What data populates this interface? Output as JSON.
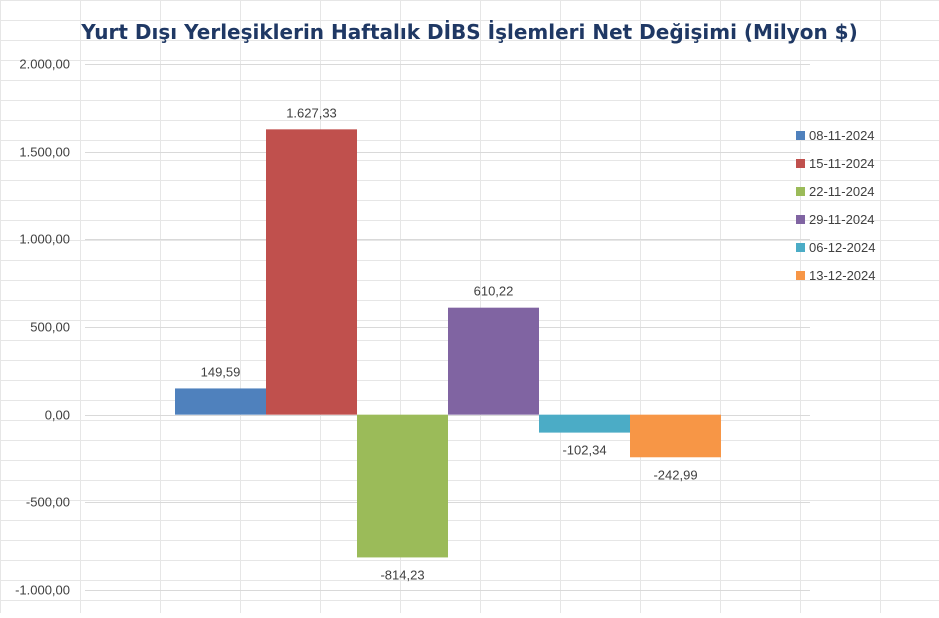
{
  "chart_data": {
    "type": "bar",
    "title": "Yurt Dışı Yerleşiklerin Haftalık DİBS İşlemleri Net Değişimi (Milyon $)",
    "xlabel": "",
    "ylabel": "",
    "ylim": [
      -1000,
      2000
    ],
    "y_ticks": [
      "2.000,00",
      "1.500,00",
      "1.000,00",
      "500,00",
      "0,00",
      "-500,00",
      "-1.000,00"
    ],
    "grid": true,
    "legend_position": "right",
    "categories": [
      "08-11-2024",
      "15-11-2024",
      "22-11-2024",
      "29-11-2024",
      "06-12-2024",
      "13-12-2024"
    ],
    "values": [
      149.59,
      1627.33,
      -814.23,
      610.22,
      -102.34,
      -242.99
    ],
    "value_labels": [
      "149,59",
      "1.627,33",
      "-814,23",
      "610,22",
      "-102,34",
      "-242,99"
    ],
    "colors": [
      "#4f81bd",
      "#c0504d",
      "#9bbb59",
      "#8064a2",
      "#4bacc6",
      "#f79646"
    ]
  }
}
